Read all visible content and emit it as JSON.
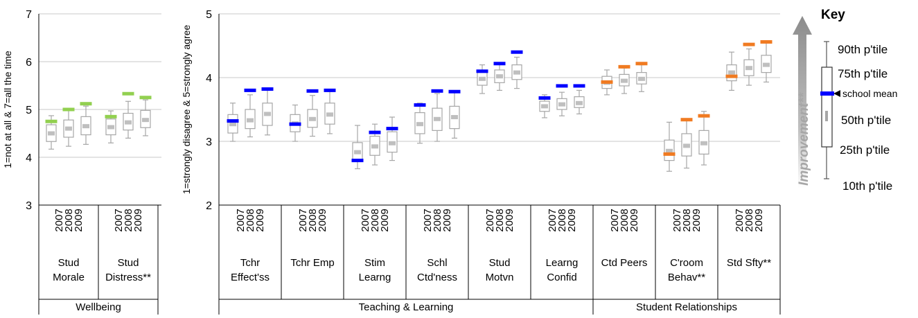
{
  "chart_data": [
    {
      "type": "box",
      "ylabel": "1=not at all & 7=all the time",
      "ylim": [
        3,
        7
      ],
      "yticks": [
        "3",
        "4",
        "5",
        "6",
        "7"
      ],
      "years": [
        "2007",
        "2008",
        "2009"
      ],
      "groups": [
        {
          "name": "Wellbeing",
          "categories": [
            {
              "label_lines": [
                "Stud",
                "Morale"
              ],
              "mean_color": "#92d050",
              "boxes": [
                {
                  "year": "2007",
                  "p10": 4.17,
                  "p25": 4.33,
                  "p50": 4.5,
                  "p75": 4.68,
                  "p90": 4.87,
                  "mean": 4.75
                },
                {
                  "year": "2008",
                  "p10": 4.23,
                  "p25": 4.42,
                  "p50": 4.6,
                  "p75": 4.78,
                  "p90": 4.98,
                  "mean": 5.0
                },
                {
                  "year": "2009",
                  "p10": 4.27,
                  "p25": 4.47,
                  "p50": 4.65,
                  "p75": 4.85,
                  "p90": 5.07,
                  "mean": 5.12
                }
              ]
            },
            {
              "label_lines": [
                "Stud",
                "Distress**"
              ],
              "mean_color": "#92d050",
              "boxes": [
                {
                  "year": "2007",
                  "p10": 4.3,
                  "p25": 4.47,
                  "p50": 4.63,
                  "p75": 4.8,
                  "p90": 4.97,
                  "mean": 4.85
                },
                {
                  "year": "2008",
                  "p10": 4.4,
                  "p25": 4.57,
                  "p50": 4.73,
                  "p75": 4.92,
                  "p90": 5.17,
                  "mean": 5.33
                },
                {
                  "year": "2009",
                  "p10": 4.45,
                  "p25": 4.62,
                  "p50": 4.78,
                  "p75": 4.98,
                  "p90": 5.2,
                  "mean": 5.25
                }
              ]
            }
          ]
        }
      ]
    },
    {
      "type": "box",
      "ylabel": "1=strongly disagree & 5=strongly agree",
      "ylim": [
        2,
        5
      ],
      "yticks": [
        "2",
        "3",
        "4",
        "5"
      ],
      "years": [
        "2007",
        "2008",
        "2009"
      ],
      "groups": [
        {
          "name": "Teaching & Learning",
          "categories": [
            {
              "label_lines": [
                "Tchr",
                "Effect'ss"
              ],
              "mean_color": "#0000ff",
              "boxes": [
                {
                  "year": "2007",
                  "p10": 3.0,
                  "p25": 3.13,
                  "p50": 3.27,
                  "p75": 3.42,
                  "p90": 3.6,
                  "mean": 3.32
                },
                {
                  "year": "2008",
                  "p10": 3.07,
                  "p25": 3.2,
                  "p50": 3.33,
                  "p75": 3.5,
                  "p90": 3.73,
                  "mean": 3.8
                },
                {
                  "year": "2009",
                  "p10": 3.1,
                  "p25": 3.25,
                  "p50": 3.43,
                  "p75": 3.6,
                  "p90": 3.8,
                  "mean": 3.82
                }
              ]
            },
            {
              "label_lines": [
                "Tchr Emp"
              ],
              "mean_color": "#0000ff",
              "boxes": [
                {
                  "year": "2007",
                  "p10": 3.0,
                  "p25": 3.15,
                  "p50": 3.28,
                  "p75": 3.42,
                  "p90": 3.57,
                  "mean": 3.27
                },
                {
                  "year": "2008",
                  "p10": 3.08,
                  "p25": 3.22,
                  "p50": 3.35,
                  "p75": 3.5,
                  "p90": 3.72,
                  "mean": 3.79
                },
                {
                  "year": "2009",
                  "p10": 3.12,
                  "p25": 3.27,
                  "p50": 3.42,
                  "p75": 3.6,
                  "p90": 3.78,
                  "mean": 3.8
                }
              ]
            },
            {
              "label_lines": [
                "Stim",
                "Learng"
              ],
              "mean_color": "#0000ff",
              "boxes": [
                {
                  "year": "2007",
                  "p10": 2.57,
                  "p25": 2.7,
                  "p50": 2.83,
                  "p75": 2.98,
                  "p90": 3.25,
                  "mean": 2.7
                },
                {
                  "year": "2008",
                  "p10": 2.63,
                  "p25": 2.78,
                  "p50": 2.92,
                  "p75": 3.08,
                  "p90": 3.27,
                  "mean": 3.14
                },
                {
                  "year": "2009",
                  "p10": 2.7,
                  "p25": 2.83,
                  "p50": 2.97,
                  "p75": 3.15,
                  "p90": 3.38,
                  "mean": 3.2
                }
              ]
            },
            {
              "label_lines": [
                "Schl",
                "Ctd'ness"
              ],
              "mean_color": "#0000ff",
              "boxes": [
                {
                  "year": "2007",
                  "p10": 2.97,
                  "p25": 3.12,
                  "p50": 3.27,
                  "p75": 3.45,
                  "p90": 3.6,
                  "mean": 3.57
                },
                {
                  "year": "2008",
                  "p10": 3.0,
                  "p25": 3.17,
                  "p50": 3.35,
                  "p75": 3.52,
                  "p90": 3.75,
                  "mean": 3.79
                },
                {
                  "year": "2009",
                  "p10": 3.05,
                  "p25": 3.2,
                  "p50": 3.38,
                  "p75": 3.55,
                  "p90": 3.77,
                  "mean": 3.78
                }
              ]
            },
            {
              "label_lines": [
                "Stud",
                "Motvn"
              ],
              "mean_color": "#0000ff",
              "boxes": [
                {
                  "year": "2007",
                  "p10": 3.75,
                  "p25": 3.88,
                  "p50": 3.98,
                  "p75": 4.08,
                  "p90": 4.2,
                  "mean": 4.1
                },
                {
                  "year": "2008",
                  "p10": 3.8,
                  "p25": 3.92,
                  "p50": 4.02,
                  "p75": 4.12,
                  "p90": 4.22,
                  "mean": 4.22
                },
                {
                  "year": "2009",
                  "p10": 3.83,
                  "p25": 3.97,
                  "p50": 4.08,
                  "p75": 4.2,
                  "p90": 4.32,
                  "mean": 4.4
                }
              ]
            },
            {
              "label_lines": [
                "Learng",
                "Confid"
              ],
              "mean_color": "#0000ff",
              "boxes": [
                {
                  "year": "2007",
                  "p10": 3.37,
                  "p25": 3.47,
                  "p50": 3.55,
                  "p75": 3.63,
                  "p90": 3.73,
                  "mean": 3.68
                },
                {
                  "year": "2008",
                  "p10": 3.4,
                  "p25": 3.5,
                  "p50": 3.58,
                  "p75": 3.67,
                  "p90": 3.77,
                  "mean": 3.87
                },
                {
                  "year": "2009",
                  "p10": 3.43,
                  "p25": 3.53,
                  "p50": 3.6,
                  "p75": 3.7,
                  "p90": 3.8,
                  "mean": 3.87
                }
              ]
            }
          ]
        },
        {
          "name": "Student Relationships",
          "categories": [
            {
              "label_lines": [
                "Ctd Peers"
              ],
              "mean_color": "#f07b22",
              "boxes": [
                {
                  "year": "2007",
                  "p10": 3.73,
                  "p25": 3.83,
                  "p50": 3.92,
                  "p75": 4.02,
                  "p90": 4.12,
                  "mean": 3.93
                },
                {
                  "year": "2008",
                  "p10": 3.75,
                  "p25": 3.87,
                  "p50": 3.95,
                  "p75": 4.05,
                  "p90": 4.15,
                  "mean": 4.17
                },
                {
                  "year": "2009",
                  "p10": 3.78,
                  "p25": 3.9,
                  "p50": 3.98,
                  "p75": 4.08,
                  "p90": 4.2,
                  "mean": 4.22
                }
              ]
            },
            {
              "label_lines": [
                "C'room",
                "Behav**"
              ],
              "mean_color": "#f07b22",
              "boxes": [
                {
                  "year": "2007",
                  "p10": 2.53,
                  "p25": 2.7,
                  "p50": 2.85,
                  "p75": 3.02,
                  "p90": 3.3,
                  "mean": 2.8
                },
                {
                  "year": "2008",
                  "p10": 2.58,
                  "p25": 2.77,
                  "p50": 2.93,
                  "p75": 3.12,
                  "p90": 3.35,
                  "mean": 3.34
                },
                {
                  "year": "2009",
                  "p10": 2.63,
                  "p25": 2.8,
                  "p50": 2.97,
                  "p75": 3.17,
                  "p90": 3.47,
                  "mean": 3.4
                }
              ]
            },
            {
              "label_lines": [
                "Std Sfty**"
              ],
              "mean_color": "#f07b22",
              "boxes": [
                {
                  "year": "2007",
                  "p10": 3.8,
                  "p25": 3.95,
                  "p50": 4.08,
                  "p75": 4.2,
                  "p90": 4.4,
                  "mean": 4.02
                },
                {
                  "year": "2008",
                  "p10": 3.88,
                  "p25": 4.03,
                  "p50": 4.15,
                  "p75": 4.28,
                  "p90": 4.45,
                  "mean": 4.52
                },
                {
                  "year": "2009",
                  "p10": 3.93,
                  "p25": 4.08,
                  "p50": 4.2,
                  "p75": 4.35,
                  "p90": 4.55,
                  "mean": 4.56
                }
              ]
            }
          ]
        }
      ]
    }
  ],
  "key": {
    "title": "Key",
    "p90": "90th p'tile",
    "p75": "75th p'tile",
    "mean": "school mean",
    "p50": "50th p'tile",
    "p25": "25th p'tile",
    "p10": "10th p'tile",
    "mean_color": "#0000ff",
    "improvement": "Improvement**"
  },
  "colors": {
    "grid": "#c8c8c8",
    "box_stroke": "#a6a6a6",
    "median": "#bfbfbf",
    "arrow": "#a6a6a6"
  }
}
